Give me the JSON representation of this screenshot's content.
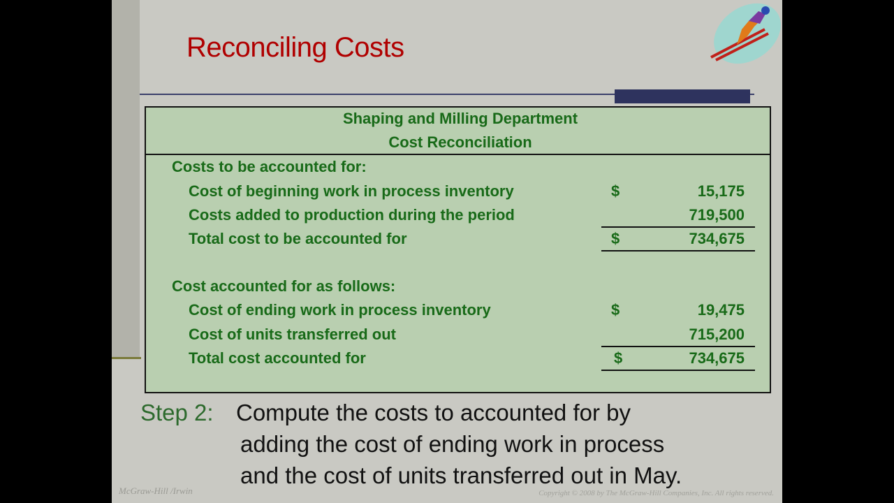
{
  "title": "Reconciling Costs",
  "colors": {
    "title": "#b00000",
    "table_text": "#186a18",
    "table_bg": "#b9cfb0",
    "accent_bar": "#2e335e"
  },
  "logo_icon": "ski-jumper-icon",
  "table": {
    "heading1": "Shaping and Milling Department",
    "heading2": "Cost Reconciliation",
    "sections": [
      {
        "label": "Costs to be accounted for:",
        "rows": [
          {
            "label": "Cost of beginning work in process inventory",
            "dollar": "$",
            "amount": "15,175"
          },
          {
            "label": "Costs added to production during the period",
            "dollar": "",
            "amount": "719,500"
          },
          {
            "label": "Total cost to be accounted for",
            "dollar": "$",
            "amount": "734,675"
          }
        ]
      },
      {
        "label": "Cost accounted for as follows:",
        "rows": [
          {
            "label": "Cost of ending work in process inventory",
            "dollar": "$",
            "amount": "19,475"
          },
          {
            "label": "Cost of units transferred out",
            "dollar": "",
            "amount": "715,200"
          },
          {
            "label": "Total cost accounted for",
            "dollar": "$",
            "amount": "734,675"
          }
        ]
      }
    ]
  },
  "step": {
    "label": "Step 2:",
    "line1": "Compute the costs to accounted for by",
    "line2": "adding the cost of ending work in process",
    "line3": "and the cost of units transferred out in May."
  },
  "footer": {
    "left": "McGraw-Hill /Irwin",
    "right": "Copyright © 2008 by The McGraw-Hill Companies, Inc. All rights reserved."
  }
}
